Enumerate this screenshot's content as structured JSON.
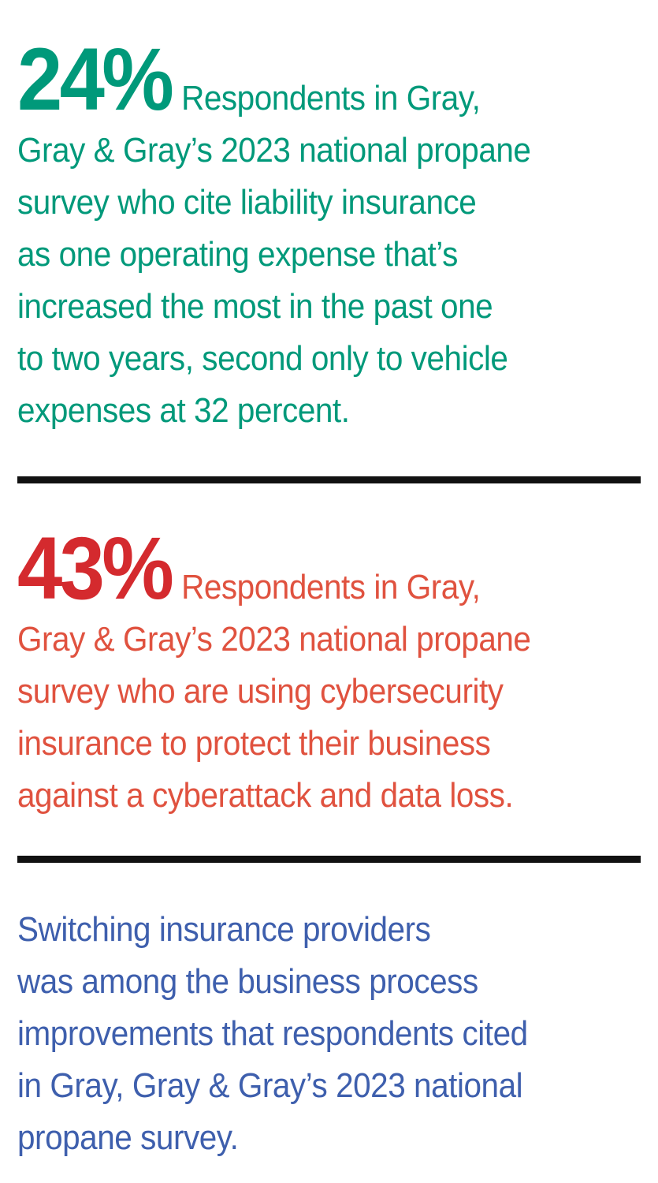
{
  "stat_1": {
    "figure": "24%",
    "lines": [
      "Respondents in Gray,",
      "Gray & Gray’s 2023 national propane",
      "survey who cite liability insurance",
      "as one operating expense that’s",
      "increased the most in the past one",
      "to two years, second only to vehicle",
      "expenses at 32 percent."
    ],
    "color": "#00997a"
  },
  "stat_2": {
    "figure": "43%",
    "lines": [
      "Respondents in Gray,",
      "Gray & Gray’s 2023 national propane",
      "survey who are using cybersecurity",
      "insurance to protect their business",
      "against a cyberattack and data loss."
    ],
    "color": "#e0523f",
    "figure_color": "#d42a2e"
  },
  "stat_3": {
    "lines": [
      "Switching insurance providers",
      "was among the business process",
      "improvements that respondents cited",
      "in Gray, Gray & Gray’s 2023 national",
      "propane survey."
    ],
    "color": "#3e5fad"
  },
  "divider_color": "#111111"
}
